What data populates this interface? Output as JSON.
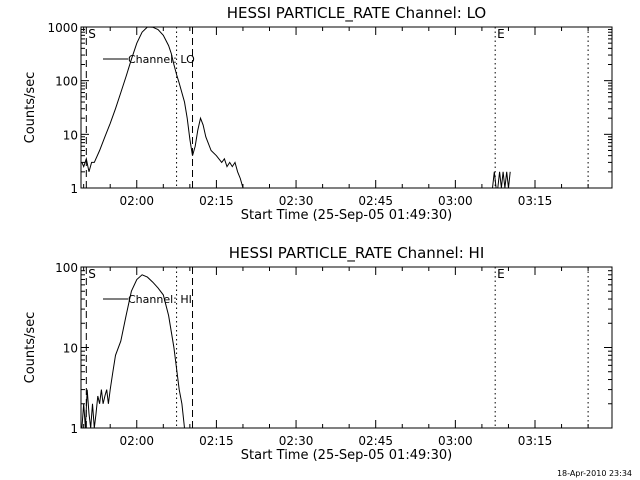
{
  "chart_data": [
    {
      "type": "line",
      "title": "HESSI PARTICLE_RATE Channel: LO",
      "xlabel": "Start Time (25-Sep-05 01:49:30)",
      "ylabel": "Counts/sec",
      "y_scale": "log",
      "ylim": [
        1,
        1000
      ],
      "y_ticks": [
        1,
        10,
        100,
        1000
      ],
      "y_tick_labels": [
        "1",
        "10",
        "100",
        "1000"
      ],
      "xlim": [
        "01:49:30",
        "03:29:30"
      ],
      "x_ticks": [
        "02:00",
        "02:15",
        "02:30",
        "02:45",
        "03:00",
        "03:15"
      ],
      "legend": "top-left",
      "series": [
        {
          "name": "Channel: LO",
          "x": [
            "01:49:40",
            "01:50:00",
            "01:50:30",
            "01:51:00",
            "01:51:30",
            "01:52:00",
            "01:53:00",
            "01:54:00",
            "01:55:00",
            "01:56:00",
            "01:57:00",
            "01:58:00",
            "01:59:00",
            "02:00:00",
            "02:01:00",
            "02:02:00",
            "02:03:00",
            "02:04:00",
            "02:05:00",
            "02:06:00",
            "02:06:30",
            "02:07:00",
            "02:07:30",
            "02:08:00",
            "02:09:00",
            "02:09:30",
            "02:10:00",
            "02:10:30",
            "02:11:00",
            "02:11:30",
            "02:12:00",
            "02:12:30",
            "02:13:00",
            "02:14:00",
            "02:15:00",
            "02:16:00",
            "02:16:30",
            "02:17:00",
            "02:17:30",
            "02:18:00",
            "02:18:30",
            "02:19:00",
            "02:19:30",
            "02:20:00"
          ],
          "values": [
            3,
            2.5,
            3.5,
            2,
            3,
            3,
            5,
            9,
            16,
            30,
            60,
            120,
            250,
            500,
            800,
            1000,
            990,
            900,
            700,
            450,
            320,
            200,
            130,
            90,
            40,
            20,
            8,
            4,
            6,
            12,
            20,
            15,
            9,
            5,
            4,
            3,
            3.5,
            2.5,
            3,
            2.5,
            3,
            2,
            1.5,
            1
          ]
        }
      ],
      "markers": [
        {
          "label": "S",
          "x": "01:50:30",
          "style": "dashed"
        },
        {
          "label": "",
          "x": "02:07:30",
          "style": "dotted"
        },
        {
          "label": "",
          "x": "02:10:30",
          "style": "dashed"
        },
        {
          "label": "E",
          "x": "03:07:30",
          "style": "dotted"
        },
        {
          "label": "",
          "x": "03:25:00",
          "style": "dotted"
        }
      ],
      "extra_spikes": {
        "x": [
          "03:07:00",
          "03:07:20",
          "03:07:40",
          "03:08:00",
          "03:08:20",
          "03:08:40",
          "03:09:00",
          "03:09:20",
          "03:09:40",
          "03:10:00",
          "03:10:20"
        ],
        "values": [
          1,
          2,
          1,
          1,
          2,
          1,
          2,
          1,
          2,
          1,
          2
        ]
      }
    },
    {
      "type": "line",
      "title": "HESSI PARTICLE_RATE Channel: HI",
      "xlabel": "Start Time (25-Sep-05 01:49:30)",
      "ylabel": "Counts/sec",
      "y_scale": "log",
      "ylim": [
        1,
        100
      ],
      "y_ticks": [
        1,
        10,
        100
      ],
      "y_tick_labels": [
        "1",
        "10",
        "100"
      ],
      "xlim": [
        "01:49:30",
        "03:29:30"
      ],
      "x_ticks": [
        "02:00",
        "02:15",
        "02:30",
        "02:45",
        "03:00",
        "03:15"
      ],
      "legend": "top-left",
      "series": [
        {
          "name": "Channel: HI",
          "x": [
            "01:49:40",
            "01:50:00",
            "01:50:20",
            "01:50:40",
            "01:51:00",
            "01:51:20",
            "01:51:40",
            "01:52:00",
            "01:52:20",
            "01:52:40",
            "01:53:00",
            "01:53:20",
            "01:53:40",
            "01:54:00",
            "01:54:20",
            "01:54:40",
            "01:55:00",
            "01:55:30",
            "01:56:00",
            "01:57:00",
            "01:58:00",
            "01:59:00",
            "02:00:00",
            "02:01:00",
            "02:02:00",
            "02:03:00",
            "02:04:00",
            "02:05:00",
            "02:06:00",
            "02:07:00",
            "02:08:00",
            "02:08:30",
            "02:09:00"
          ],
          "values": [
            1,
            2,
            1,
            3,
            1.5,
            1,
            2,
            1,
            1.5,
            2.5,
            2,
            3,
            2,
            2.5,
            3,
            2,
            3,
            5,
            8,
            12,
            25,
            50,
            70,
            80,
            75,
            65,
            55,
            45,
            25,
            10,
            3,
            2,
            1
          ]
        }
      ],
      "markers": [
        {
          "label": "S",
          "x": "01:50:30",
          "style": "dashed"
        },
        {
          "label": "",
          "x": "02:07:30",
          "style": "dotted"
        },
        {
          "label": "",
          "x": "02:10:30",
          "style": "dashed"
        },
        {
          "label": "E",
          "x": "03:07:30",
          "style": "dotted"
        },
        {
          "label": "",
          "x": "03:25:00",
          "style": "dotted"
        }
      ]
    }
  ],
  "footer": {
    "timestamp": "18-Apr-2010 23:34"
  }
}
